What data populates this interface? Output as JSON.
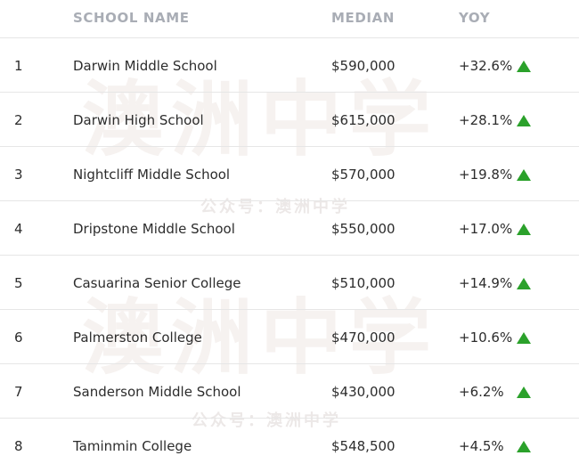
{
  "header": {
    "school_name": "SCHOOL NAME",
    "median": "MEDIAN",
    "yoy": "YOY"
  },
  "rows": [
    {
      "rank": "1",
      "name": "Darwin Middle School",
      "median": "$590,000",
      "yoy": "+32.6%",
      "trend": "up"
    },
    {
      "rank": "2",
      "name": "Darwin High School",
      "median": "$615,000",
      "yoy": "+28.1%",
      "trend": "up"
    },
    {
      "rank": "3",
      "name": "Nightcliff Middle School",
      "median": "$570,000",
      "yoy": "+19.8%",
      "trend": "up"
    },
    {
      "rank": "4",
      "name": "Dripstone Middle School",
      "median": "$550,000",
      "yoy": "+17.0%",
      "trend": "up"
    },
    {
      "rank": "5",
      "name": "Casuarina Senior College",
      "median": "$510,000",
      "yoy": "+14.9%",
      "trend": "up"
    },
    {
      "rank": "6",
      "name": "Palmerston College",
      "median": "$470,000",
      "yoy": "+10.6%",
      "trend": "up"
    },
    {
      "rank": "7",
      "name": "Sanderson Middle School",
      "median": "$430,000",
      "yoy": "+6.2%",
      "trend": "up"
    },
    {
      "rank": "8",
      "name": "Taminmin College",
      "median": "$548,500",
      "yoy": "+4.5%",
      "trend": "up"
    }
  ],
  "watermark": {
    "big": "澳洲中学",
    "small": "公众号：澳洲中学"
  },
  "colors": {
    "trend_up": "#2ba12b",
    "header_text": "#a9adb5",
    "divider": "#e6e6e6"
  }
}
